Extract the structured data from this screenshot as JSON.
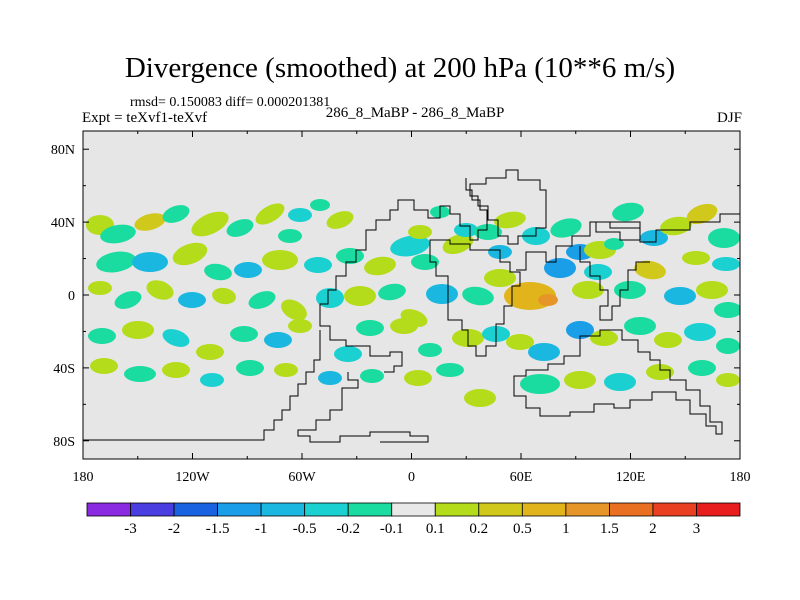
{
  "chart_data": {
    "type": "heatmap",
    "title": "Divergence (smoothed) at 200 hPa (10**6 m/s)",
    "rmsd_text": "rmsd= 0.150083 diff= 0.000201381",
    "experiment_label": "Expt = teXvf1-teXvf",
    "center_label": "286_8_MaBP - 286_8_MaBP",
    "season_label": "DJF",
    "x_axis": {
      "range": [
        -180,
        180
      ],
      "tick_labels": [
        "180",
        "120W",
        "60W",
        "0",
        "60E",
        "120E",
        "180"
      ]
    },
    "y_axis": {
      "range": [
        -90,
        90
      ],
      "tick_labels": [
        "80N",
        "40N",
        "0",
        "40S",
        "80S"
      ]
    },
    "colorbar": {
      "labels": [
        "-3",
        "-2",
        "-1.5",
        "-1",
        "-0.5",
        "-0.2",
        "-0.1",
        "0.1",
        "0.2",
        "0.5",
        "1",
        "1.5",
        "2",
        "3"
      ],
      "colors": [
        "#8a2be2",
        "#4a3ee0",
        "#1a63e0",
        "#1a9ee8",
        "#1ab8e0",
        "#1ad0d0",
        "#1adca0",
        "#e8e8e8",
        "#b4dc1a",
        "#d0c81a",
        "#e0b41a",
        "#e69628",
        "#e87020",
        "#e84020",
        "#e81e1e"
      ]
    }
  }
}
